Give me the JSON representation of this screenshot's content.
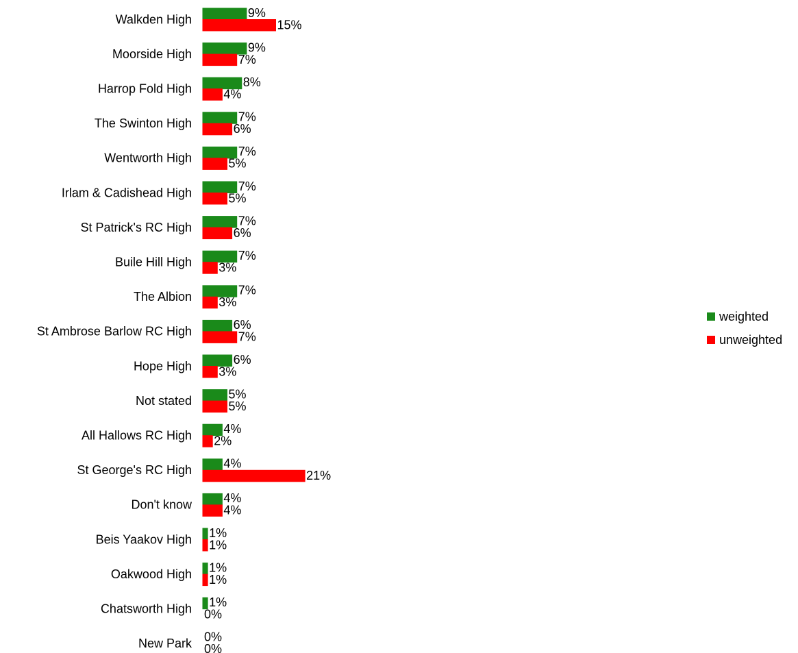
{
  "chart_data": {
    "type": "bar",
    "orientation": "horizontal",
    "categories": [
      "Walkden High",
      "Moorside High",
      "Harrop Fold High",
      "The Swinton High",
      "Wentworth High",
      "Irlam & Cadishead High",
      "St Patrick's RC High",
      "Buile Hill High",
      "The Albion",
      "St Ambrose Barlow RC High",
      "Hope High",
      "Not stated",
      "All Hallows RC High",
      "St George's RC High",
      "Don't know",
      "Beis Yaakov High",
      "Oakwood High",
      "Chatsworth High",
      "New Park"
    ],
    "series": [
      {
        "name": "weighted",
        "color": "#1a8a1a",
        "values": [
          9,
          9,
          8,
          7,
          7,
          7,
          7,
          7,
          7,
          6,
          6,
          5,
          4,
          4,
          4,
          1,
          1,
          1,
          0
        ],
        "value_labels": [
          "9%",
          "9%",
          "8%",
          "7%",
          "7%",
          "7%",
          "7%",
          "7%",
          "7%",
          "6%",
          "6%",
          "5%",
          "4%",
          "4%",
          "4%",
          "1%",
          "1%",
          "1%",
          "0%"
        ]
      },
      {
        "name": "unweighted",
        "color": "#ff0000",
        "values": [
          15,
          7,
          4,
          6,
          5,
          5,
          6,
          3,
          3,
          7,
          3,
          5,
          2,
          21,
          4,
          1,
          1,
          0,
          0
        ],
        "value_labels": [
          "15%",
          "7%",
          "4%",
          "6%",
          "5%",
          "5%",
          "6%",
          "3%",
          "3%",
          "7%",
          "3%",
          "5%",
          "2%",
          "21%",
          "4%",
          "1%",
          "1%",
          "0%",
          "0%"
        ]
      }
    ],
    "legend": "right"
  }
}
